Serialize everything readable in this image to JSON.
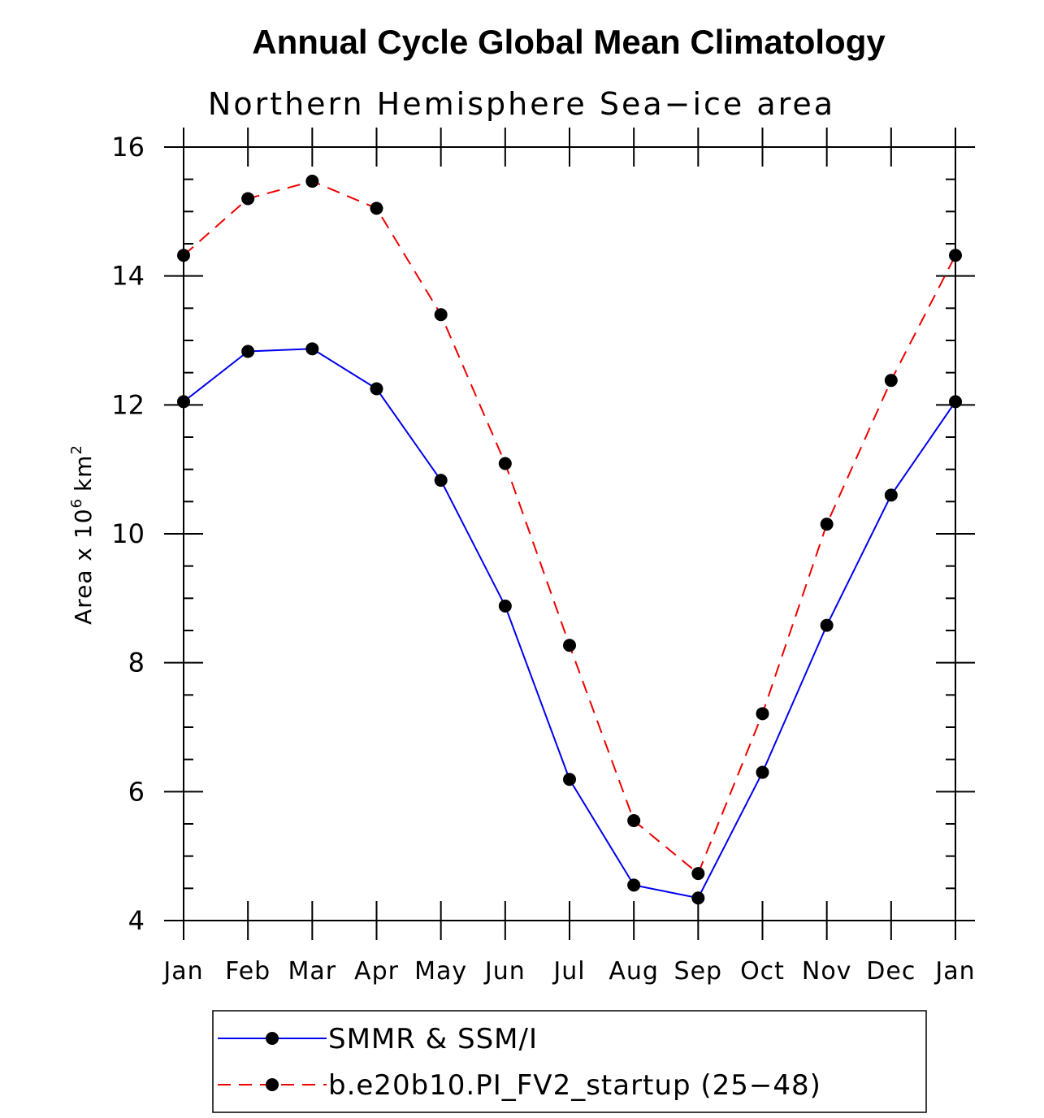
{
  "chart_data": {
    "type": "line",
    "title": "Annual Cycle Global Mean Climatology",
    "subtitle": "Northern Hemisphere Sea−ice area",
    "xlabel": "",
    "ylabel": "Area x 10",
    "ylabel_exponent": "6",
    "ylabel_unit": "km",
    "ylabel_unit_exponent": "2",
    "categories": [
      "Jan",
      "Feb",
      "Mar",
      "Apr",
      "May",
      "Jun",
      "Jul",
      "Aug",
      "Sep",
      "Oct",
      "Nov",
      "Dec",
      "Jan"
    ],
    "ylim": [
      4,
      16
    ],
    "yticks": [
      4,
      6,
      8,
      10,
      12,
      14,
      16
    ],
    "grid": false,
    "legend_position": "bottom",
    "series": [
      {
        "name": "SMMR & SSM/I",
        "color": "#0000ee",
        "style": "solid",
        "marker": "filled-circle",
        "values": [
          12.05,
          12.83,
          12.87,
          12.25,
          10.83,
          8.88,
          6.19,
          4.55,
          4.35,
          6.3,
          8.58,
          10.6,
          12.05
        ]
      },
      {
        "name": "b.e20b10.PI_FV2_startup (25−48)",
        "color": "#ee0000",
        "style": "dashed",
        "marker": "filled-circle",
        "values": [
          14.32,
          15.2,
          15.47,
          15.05,
          13.4,
          11.09,
          8.27,
          5.55,
          4.73,
          7.21,
          10.15,
          12.38,
          14.32
        ]
      }
    ]
  }
}
